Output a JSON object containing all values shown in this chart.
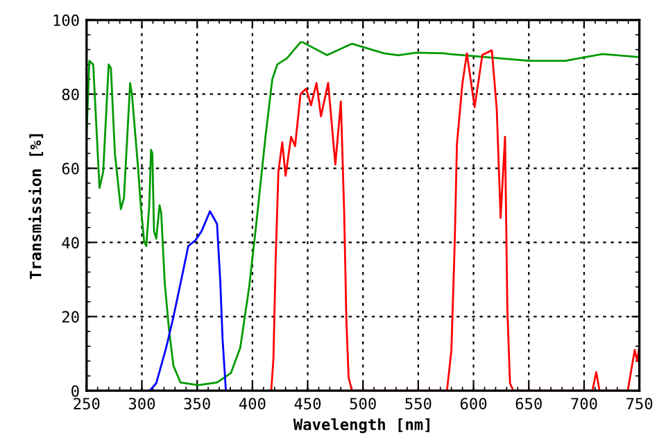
{
  "chart_data": {
    "type": "line",
    "xlabel": "Wavelength [nm]",
    "ylabel": "Transmission [%]",
    "xlim": [
      250,
      750
    ],
    "ylim": [
      0,
      100
    ],
    "xticks": [
      250,
      300,
      350,
      400,
      450,
      500,
      550,
      600,
      650,
      700,
      750
    ],
    "yticks": [
      0,
      20,
      40,
      60,
      80,
      100
    ],
    "grid": true,
    "line_style": "solid",
    "marker": "none",
    "series": [
      {
        "color": "#009900",
        "x": [
          250,
          252.5,
          256,
          261.7,
          265,
          270,
          272,
          275.6,
          281,
          283.8,
          289.4,
          291,
          296.6,
          299,
          302,
          304,
          306.7,
          308.3,
          309.5,
          311,
          313,
          316,
          317.5,
          320.7,
          324.5,
          328.6,
          335,
          351,
          368,
          380.6,
          389,
          397,
          403.5,
          412,
          418,
          422.5,
          431,
          443.5,
          445.5,
          467.5,
          490,
          519,
          532,
          548.6,
          573.6,
          578,
          650,
          683,
          716.6,
          750
        ],
        "values": [
          69,
          89,
          88,
          54.7,
          59,
          88,
          87,
          64,
          49,
          52,
          83,
          80,
          60,
          50,
          40.4,
          39,
          50,
          65,
          64,
          43,
          41,
          50,
          48,
          29,
          16.6,
          6.7,
          2.2,
          1.5,
          2.2,
          4.8,
          11.6,
          27.8,
          45,
          69,
          84,
          88,
          89.6,
          94,
          94,
          90.5,
          93.6,
          91,
          90.5,
          91.2,
          91,
          90.8,
          89,
          89,
          90.8,
          90
        ]
      },
      {
        "color": "#0000ff",
        "x": [
          307,
          313,
          322,
          328.6,
          335,
          342,
          348.5,
          354,
          361.6,
          368,
          371,
          373,
          376
        ],
        "values": [
          0,
          2,
          11.6,
          20,
          29,
          39,
          40.6,
          43,
          48.4,
          45,
          29,
          14,
          0
        ]
      },
      {
        "color": "#ff0000",
        "x": [
          415,
          417,
          419,
          421,
          423.5,
          427,
          430,
          435,
          438.6,
          443.5,
          448.6,
          453,
          458,
          462,
          468.5,
          475,
          480,
          483,
          485,
          487,
          490,
          576,
          580,
          583,
          585,
          590,
          594,
          601,
          608,
          616.6,
          621,
          624.5,
          628.5,
          630.6,
          633,
          636,
          707.5,
          711,
          714,
          739.5,
          745.8,
          748,
          750
        ],
        "values": [
          0,
          0,
          8.5,
          35,
          59,
          67,
          58,
          68.5,
          66,
          80,
          81.5,
          77,
          83,
          74,
          83,
          61,
          78,
          48,
          19,
          3.6,
          0,
          0,
          11,
          40,
          66.6,
          83,
          91,
          76.5,
          90.6,
          91.8,
          76,
          46.6,
          68.5,
          22,
          2,
          0,
          0,
          5,
          0,
          0,
          11,
          8,
          12
        ]
      }
    ]
  }
}
